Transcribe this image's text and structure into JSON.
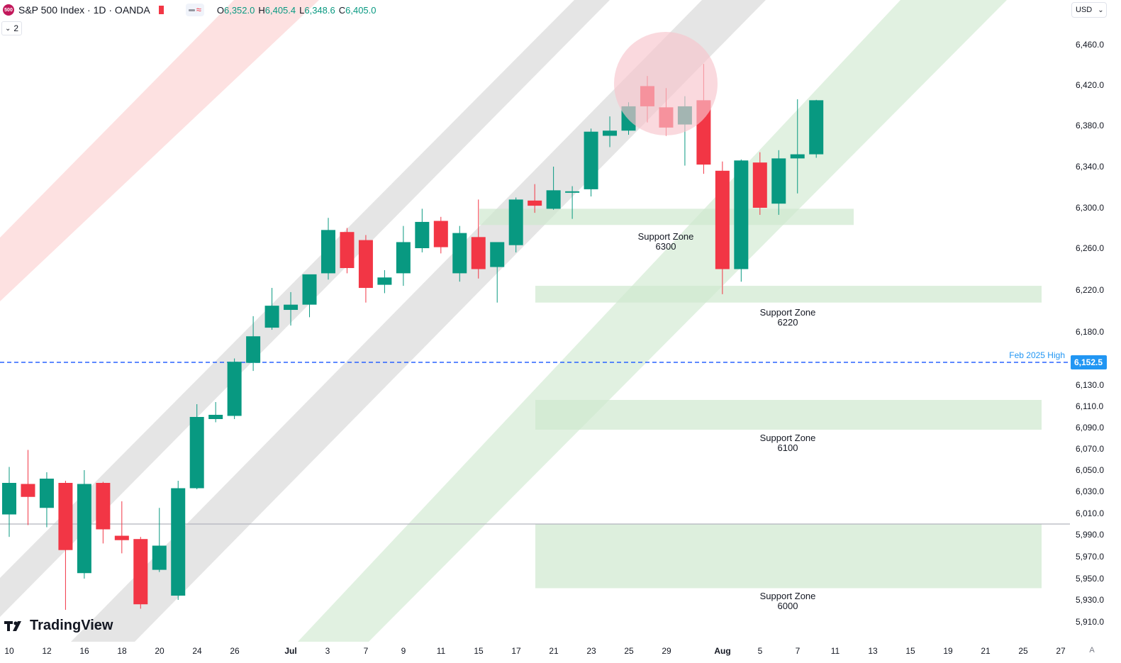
{
  "header": {
    "symbol_badge": "500",
    "title": "S&P 500 Index · 1D · OANDA",
    "ohlc": {
      "o_label": "O",
      "o_value": "6,352.0",
      "h_label": "H",
      "h_value": "6,405.4",
      "l_label": "L",
      "l_value": "6,348.6",
      "c_label": "C",
      "c_value": "6,405.0"
    },
    "indicators_count": "2",
    "currency": "USD"
  },
  "branding": {
    "logo_text": "TradingView"
  },
  "scale_mode": "A",
  "colors": {
    "up": "#089981",
    "down": "#f23645",
    "channel_gray": "#e0e0e0",
    "channel_red": "#fddcdc",
    "channel_green": "#dcefdc",
    "zone": "#cfe8cf",
    "highlight_circle": "#f7c5cc",
    "dashed_line": "#2962ff",
    "price_label_bg": "#2196f3",
    "baseline": "#b2b5be"
  },
  "chart_data": {
    "type": "candlestick",
    "symbol": "S&P 500 Index",
    "interval": "1D",
    "source": "OANDA",
    "ylim": [
      5890,
      6480
    ],
    "y_ticks": [
      "6,460.0",
      "6,420.0",
      "6,380.0",
      "6,340.0",
      "6,300.0",
      "6,260.0",
      "6,220.0",
      "6,180.0",
      "6,130.0",
      "6,110.0",
      "6,090.0",
      "6,070.0",
      "6,050.0",
      "6,030.0",
      "6,010.0",
      "5,990.0",
      "5,970.0",
      "5,950.0",
      "5,930.0",
      "5,910.0"
    ],
    "y_tick_values": [
      6460,
      6420,
      6380,
      6340,
      6300,
      6260,
      6220,
      6180,
      6130,
      6110,
      6090,
      6070,
      6050,
      6030,
      6010,
      5990,
      5970,
      5950,
      5930,
      5910
    ],
    "x_labels": [
      "10",
      "12",
      "16",
      "18",
      "20",
      "24",
      "26",
      "Jul",
      "3",
      "7",
      "9",
      "11",
      "15",
      "17",
      "21",
      "23",
      "25",
      "29",
      "Aug",
      "5",
      "7",
      "11",
      "13",
      "15",
      "19",
      "21",
      "25",
      "27"
    ],
    "candles": [
      {
        "date": "Jun 10",
        "o": 6009,
        "h": 6053,
        "l": 5988,
        "c": 6038
      },
      {
        "date": "Jun 11",
        "o": 6037,
        "h": 6069,
        "l": 5999,
        "c": 6025
      },
      {
        "date": "Jun 12",
        "o": 6015,
        "h": 6048,
        "l": 5997,
        "c": 6042
      },
      {
        "date": "Jun 13",
        "o": 6038,
        "h": 6040,
        "l": 5921,
        "c": 5976
      },
      {
        "date": "Jun 16",
        "o": 5955,
        "h": 6050,
        "l": 5950,
        "c": 6037
      },
      {
        "date": "Jun 17",
        "o": 6038,
        "h": 6039,
        "l": 5982,
        "c": 5995
      },
      {
        "date": "Jun 18",
        "o": 5989,
        "h": 6021,
        "l": 5973,
        "c": 5985
      },
      {
        "date": "Jun 19",
        "o": 5986,
        "h": 5988,
        "l": 5922,
        "c": 5926
      },
      {
        "date": "Jun 20",
        "o": 5958,
        "h": 6015,
        "l": 5956,
        "c": 5980
      },
      {
        "date": "Jun 23",
        "o": 5934,
        "h": 6040,
        "l": 5930,
        "c": 6033
      },
      {
        "date": "Jun 24",
        "o": 6033,
        "h": 6112,
        "l": 6032,
        "c": 6100
      },
      {
        "date": "Jun 25",
        "o": 6098,
        "h": 6114,
        "l": 6095,
        "c": 6102
      },
      {
        "date": "Jun 26",
        "o": 6101,
        "h": 6156,
        "l": 6098,
        "c": 6153
      },
      {
        "date": "Jun 27",
        "o": 6152,
        "h": 6195,
        "l": 6144,
        "c": 6176
      },
      {
        "date": "Jun 30",
        "o": 6184,
        "h": 6222,
        "l": 6182,
        "c": 6205
      },
      {
        "date": "Jul 1",
        "o": 6201,
        "h": 6218,
        "l": 6186,
        "c": 6206
      },
      {
        "date": "Jul 2",
        "o": 6206,
        "h": 6233,
        "l": 6194,
        "c": 6235
      },
      {
        "date": "Jul 3",
        "o": 6236,
        "h": 6290,
        "l": 6230,
        "c": 6278
      },
      {
        "date": "Jul 7",
        "o": 6276,
        "h": 6280,
        "l": 6236,
        "c": 6241
      },
      {
        "date": "Jul 8",
        "o": 6268,
        "h": 6273,
        "l": 6208,
        "c": 6222
      },
      {
        "date": "Jul 9",
        "o": 6225,
        "h": 6239,
        "l": 6217,
        "c": 6232
      },
      {
        "date": "Jul 10",
        "o": 6236,
        "h": 6282,
        "l": 6224,
        "c": 6266
      },
      {
        "date": "Jul 11",
        "o": 6260,
        "h": 6299,
        "l": 6256,
        "c": 6286
      },
      {
        "date": "Jul 14",
        "o": 6287,
        "h": 6291,
        "l": 6255,
        "c": 6261
      },
      {
        "date": "Jul 15",
        "o": 6236,
        "h": 6282,
        "l": 6228,
        "c": 6275
      },
      {
        "date": "Jul 16",
        "o": 6271,
        "h": 6308,
        "l": 6231,
        "c": 6240
      },
      {
        "date": "Jul 17",
        "o": 6242,
        "h": 6264,
        "l": 6208,
        "c": 6266
      },
      {
        "date": "Jul 18",
        "o": 6263,
        "h": 6310,
        "l": 6256,
        "c": 6308
      },
      {
        "date": "Jul 21",
        "o": 6307,
        "h": 6323,
        "l": 6295,
        "c": 6302
      },
      {
        "date": "Jul 22",
        "o": 6299,
        "h": 6340,
        "l": 6298,
        "c": 6317
      },
      {
        "date": "Jul 23",
        "o": 6316,
        "h": 6321,
        "l": 6289,
        "c": 6316
      },
      {
        "date": "Jul 24",
        "o": 6318,
        "h": 6377,
        "l": 6311,
        "c": 6374
      },
      {
        "date": "Jul 25",
        "o": 6370,
        "h": 6389,
        "l": 6359,
        "c": 6375
      },
      {
        "date": "Jul 28",
        "o": 6375,
        "h": 6403,
        "l": 6371,
        "c": 6399
      },
      {
        "date": "Jul 29",
        "o": 6419,
        "h": 6429,
        "l": 6383,
        "c": 6399
      },
      {
        "date": "Jul 30",
        "o": 6398,
        "h": 6417,
        "l": 6370,
        "c": 6378
      },
      {
        "date": "Jul 31",
        "o": 6381,
        "h": 6409,
        "l": 6341,
        "c": 6399
      },
      {
        "date": "Aug 1",
        "o": 6405,
        "h": 6441,
        "l": 6333,
        "c": 6342
      },
      {
        "date": "Aug 4",
        "o": 6336,
        "h": 6345,
        "l": 6216,
        "c": 6240
      },
      {
        "date": "Aug 5",
        "o": 6240,
        "h": 6347,
        "l": 6228,
        "c": 6346
      },
      {
        "date": "Aug 6",
        "o": 6344,
        "h": 6354,
        "l": 6293,
        "c": 6300
      },
      {
        "date": "Aug 7",
        "o": 6304,
        "h": 6356,
        "l": 6293,
        "c": 6348
      },
      {
        "date": "Aug 8",
        "o": 6348,
        "h": 6406,
        "l": 6314,
        "c": 6352
      },
      {
        "date": "Aug 11",
        "o": 6352,
        "h": 6405.4,
        "l": 6348.6,
        "c": 6405
      }
    ],
    "annotations": {
      "support_zones": [
        {
          "title": "Support Zone",
          "value": "6300",
          "y_low": 6283,
          "y_high": 6299
        },
        {
          "title": "Support Zone",
          "value": "6220",
          "y_low": 6208,
          "y_high": 6224
        },
        {
          "title": "Support Zone",
          "value": "6100",
          "y_low": 6088,
          "y_high": 6116
        },
        {
          "title": "Support Zone",
          "value": "6000",
          "y_low": 5941,
          "y_high": 6000
        }
      ],
      "horizontal_line": {
        "label": "Feb 2025 High",
        "value": 6152.5,
        "price_label": "6,152.5"
      },
      "baseline_value": 6000
    }
  }
}
